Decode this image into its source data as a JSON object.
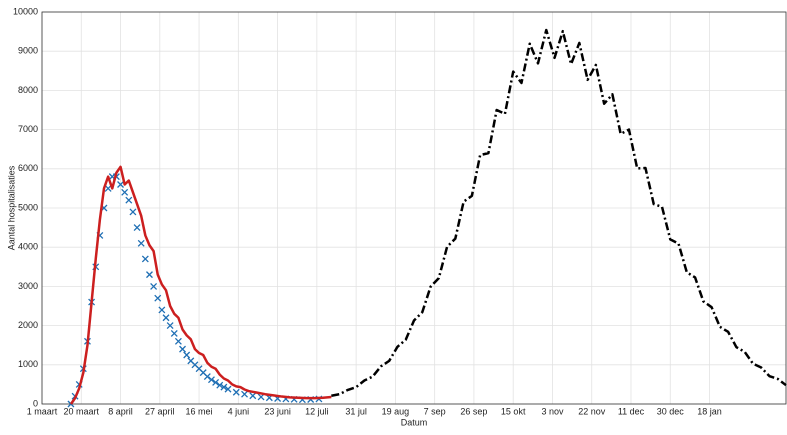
{
  "chart_data": {
    "type": "line",
    "xlabel": "Datum",
    "ylabel": "Aantal hospitalisaties",
    "xlim": [
      0,
      360
    ],
    "xticks": [
      {
        "value": 0,
        "label": "1 maart"
      },
      {
        "value": 19,
        "label": "20 maart"
      },
      {
        "value": 38,
        "label": "8 april"
      },
      {
        "value": 57,
        "label": "27 april"
      },
      {
        "value": 76,
        "label": "16 mei"
      },
      {
        "value": 95,
        "label": "4 juni"
      },
      {
        "value": 114,
        "label": "23 juni"
      },
      {
        "value": 133,
        "label": "12 juli"
      },
      {
        "value": 152,
        "label": "31 jul"
      },
      {
        "value": 171,
        "label": "19 aug"
      },
      {
        "value": 190,
        "label": "7 sep"
      },
      {
        "value": 209,
        "label": "26 sep"
      },
      {
        "value": 228,
        "label": "15 okt"
      },
      {
        "value": 247,
        "label": "3 nov"
      },
      {
        "value": 266,
        "label": "22 nov"
      },
      {
        "value": 285,
        "label": "11 dec"
      },
      {
        "value": 304,
        "label": "30 dec"
      },
      {
        "value": 323,
        "label": "18 jan"
      }
    ],
    "ylim": [
      0,
      10000
    ],
    "yticks": [
      0,
      1000,
      2000,
      3000,
      4000,
      5000,
      6000,
      7000,
      8000,
      9000,
      10000
    ],
    "grid": true,
    "series": [
      {
        "color": "#1f6fb4",
        "marker": "x",
        "x": [
          14,
          16,
          18,
          20,
          22,
          24,
          26,
          28,
          30,
          32,
          34,
          36,
          38,
          40,
          42,
          44,
          46,
          48,
          50,
          52,
          54,
          56,
          58,
          60,
          62,
          64,
          66,
          68,
          70,
          72,
          74,
          76,
          78,
          80,
          82,
          84,
          86,
          88,
          90,
          94,
          98,
          102,
          106,
          110,
          114,
          118,
          122,
          126,
          130,
          134
        ],
        "values": [
          0,
          200,
          500,
          900,
          1600,
          2600,
          3500,
          4300,
          5000,
          5500,
          5800,
          5800,
          5600,
          5400,
          5200,
          4900,
          4500,
          4100,
          3700,
          3300,
          3000,
          2700,
          2400,
          2200,
          2000,
          1800,
          1600,
          1400,
          1250,
          1100,
          1000,
          900,
          800,
          700,
          620,
          550,
          480,
          430,
          380,
          300,
          250,
          210,
          180,
          160,
          140,
          130,
          120,
          110,
          115,
          130
        ]
      },
      {
        "color": "#cc1f1f",
        "linestyle": "-",
        "width": 2.5,
        "x": [
          14,
          16,
          18,
          20,
          22,
          24,
          26,
          28,
          30,
          32,
          34,
          36,
          38,
          40,
          42,
          44,
          46,
          48,
          50,
          52,
          54,
          56,
          58,
          60,
          62,
          64,
          66,
          68,
          70,
          72,
          74,
          76,
          78,
          80,
          82,
          84,
          86,
          88,
          90,
          92,
          94,
          96,
          98,
          100,
          104,
          108,
          112,
          116,
          120,
          124,
          128,
          132,
          136,
          140
        ],
        "values": [
          0,
          150,
          400,
          800,
          1500,
          2600,
          3700,
          4700,
          5500,
          5800,
          5500,
          5900,
          6050,
          5600,
          5700,
          5400,
          5100,
          4800,
          4300,
          4050,
          3900,
          3300,
          3050,
          2900,
          2500,
          2300,
          2200,
          1900,
          1750,
          1650,
          1400,
          1300,
          1250,
          1050,
          950,
          900,
          750,
          650,
          600,
          500,
          450,
          430,
          370,
          330,
          290,
          250,
          220,
          190,
          170,
          160,
          150,
          150,
          160,
          180
        ]
      },
      {
        "color": "#000000",
        "linestyle": "-.",
        "width": 2.5,
        "x": [
          140,
          144,
          148,
          152,
          156,
          160,
          164,
          168,
          172,
          176,
          180,
          184,
          188,
          192,
          196,
          200,
          204,
          208,
          212,
          216,
          220,
          224,
          228,
          232,
          236,
          240,
          244,
          248,
          252,
          256,
          260,
          264,
          268,
          272,
          276,
          280,
          284,
          288,
          292,
          296,
          300,
          304,
          308,
          312,
          316,
          320,
          324,
          328,
          332,
          336,
          340,
          344,
          348,
          352,
          356,
          360
        ],
        "values": [
          210,
          250,
          360,
          430,
          600,
          700,
          960,
          1100,
          1460,
          1640,
          2130,
          2340,
          2990,
          3210,
          4010,
          4220,
          5160,
          5310,
          6350,
          6400,
          7500,
          7400,
          8480,
          8190,
          9190,
          8690,
          9540,
          8830,
          9510,
          8670,
          9210,
          8270,
          8650,
          7660,
          7900,
          6890,
          7000,
          6010,
          6020,
          5100,
          5030,
          4200,
          4090,
          3360,
          3230,
          2620,
          2470,
          1970,
          1840,
          1450,
          1330,
          1030,
          930,
          710,
          640,
          480
        ]
      }
    ]
  }
}
